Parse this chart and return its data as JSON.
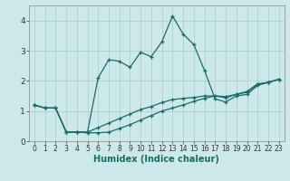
{
  "xlabel": "Humidex (Indice chaleur)",
  "bg_color": "#cce8e8",
  "line_color": "#1a6b6b",
  "grid_color": "#aacccc",
  "series1_x": [
    0,
    1,
    2,
    3,
    4,
    5,
    6,
    7,
    8,
    9,
    10,
    11,
    12,
    13,
    14,
    15,
    16,
    17,
    18,
    19,
    20,
    21,
    22,
    23
  ],
  "series1_y": [
    1.2,
    1.1,
    1.1,
    0.3,
    0.3,
    0.3,
    2.1,
    2.7,
    2.65,
    2.45,
    2.95,
    2.8,
    3.3,
    4.15,
    3.55,
    3.2,
    2.35,
    1.4,
    1.3,
    1.5,
    1.55,
    1.85,
    1.95,
    2.05
  ],
  "series2_x": [
    0,
    1,
    2,
    3,
    4,
    5,
    6,
    7,
    8,
    9,
    10,
    11,
    12,
    13,
    14,
    15,
    16,
    17,
    18,
    19,
    20,
    21,
    22,
    23
  ],
  "series2_y": [
    1.2,
    1.1,
    1.1,
    0.3,
    0.3,
    0.3,
    0.45,
    0.6,
    0.75,
    0.9,
    1.05,
    1.15,
    1.28,
    1.38,
    1.42,
    1.45,
    1.5,
    1.5,
    1.48,
    1.55,
    1.62,
    1.88,
    1.95,
    2.05
  ],
  "series3_x": [
    0,
    1,
    2,
    3,
    4,
    5,
    6,
    7,
    8,
    9,
    10,
    11,
    12,
    13,
    14,
    15,
    16,
    17,
    18,
    19,
    20,
    21,
    22,
    23
  ],
  "series3_y": [
    1.2,
    1.1,
    1.1,
    0.3,
    0.3,
    0.28,
    0.28,
    0.3,
    0.42,
    0.55,
    0.7,
    0.85,
    1.0,
    1.1,
    1.2,
    1.32,
    1.42,
    1.5,
    1.44,
    1.55,
    1.65,
    1.9,
    1.95,
    2.05
  ],
  "xlim": [
    -0.5,
    23.5
  ],
  "ylim": [
    0,
    4.5
  ],
  "yticks": [
    0,
    1,
    2,
    3,
    4
  ],
  "xticks": [
    0,
    1,
    2,
    3,
    4,
    5,
    6,
    7,
    8,
    9,
    10,
    11,
    12,
    13,
    14,
    15,
    16,
    17,
    18,
    19,
    20,
    21,
    22,
    23
  ],
  "tick_fontsize": 5.5,
  "xlabel_fontsize": 7,
  "ytick_fontsize": 6.5
}
